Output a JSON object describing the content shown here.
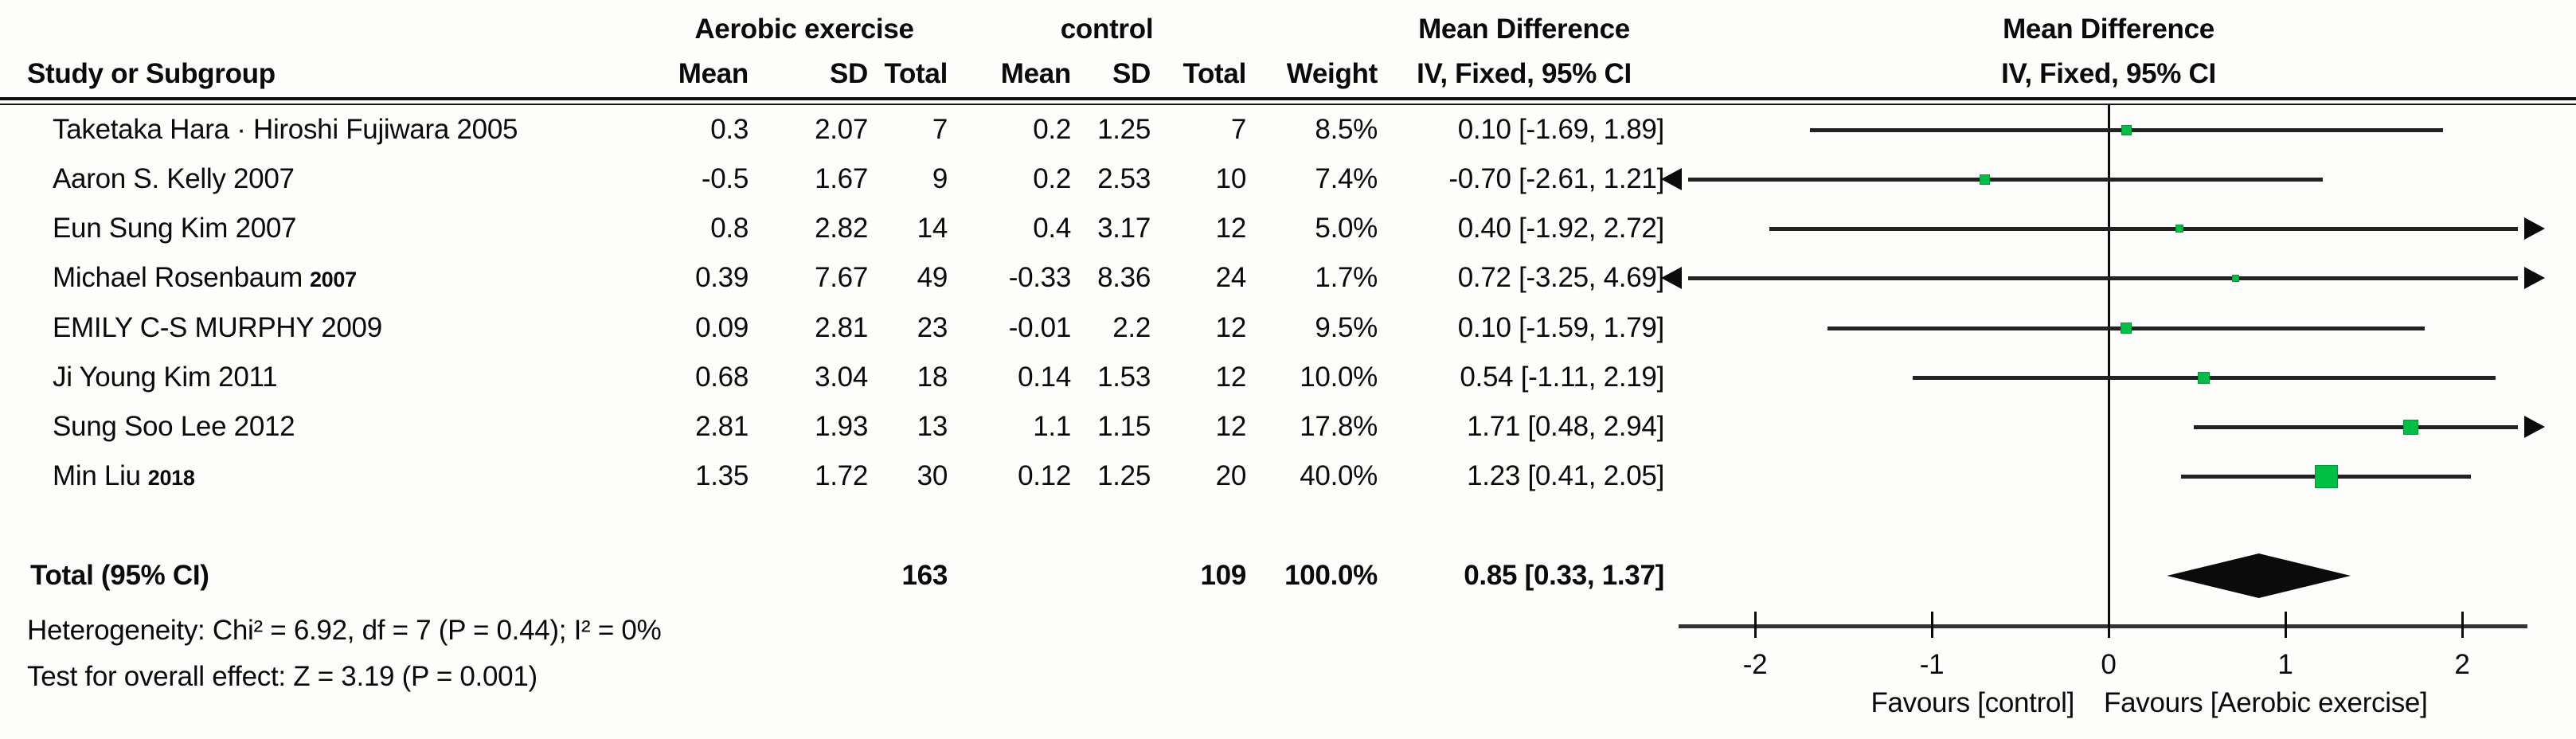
{
  "colors": {
    "marker_green": "#00bf44",
    "marker_green_border": "#009a38",
    "ci_line": "#222222",
    "axis_line": "#333333",
    "diamond_black": "#0b0b0b",
    "text": "#0a0a0a"
  },
  "header": {
    "study_col": "Study or Subgroup",
    "group1": "Aerobic exercise",
    "group2": "control",
    "mean1": "Mean",
    "sd1": "SD",
    "total1": "Total",
    "mean2": "Mean",
    "sd2": "SD",
    "total2": "Total",
    "weight": "Weight",
    "md_title": "Mean Difference",
    "md_sub": "IV, Fixed, 95% CI",
    "plot_md_title": "Mean Difference",
    "plot_md_sub": "IV, Fixed, 95% CI"
  },
  "rows": [
    {
      "study": "Taketaka Hara · Hiroshi Fujiwara 2005",
      "year_small": "",
      "mean1": "0.3",
      "sd1": "2.07",
      "total1": "7",
      "mean2": "0.2",
      "sd2": "1.25",
      "total2": "7",
      "weight": "8.5%",
      "ci": "0.10 [-1.69, 1.89]"
    },
    {
      "study": "Aaron S. Kelly 2007",
      "year_small": "",
      "mean1": "-0.5",
      "sd1": "1.67",
      "total1": "9",
      "mean2": "0.2",
      "sd2": "2.53",
      "total2": "10",
      "weight": "7.4%",
      "ci": "-0.70 [-2.61, 1.21]"
    },
    {
      "study": "Eun Sung Kim 2007",
      "year_small": "",
      "mean1": "0.8",
      "sd1": "2.82",
      "total1": "14",
      "mean2": "0.4",
      "sd2": "3.17",
      "total2": "12",
      "weight": "5.0%",
      "ci": "0.40 [-1.92, 2.72]"
    },
    {
      "study": "Michael Rosenbaum",
      "year_small": "2007",
      "mean1": "0.39",
      "sd1": "7.67",
      "total1": "49",
      "mean2": "-0.33",
      "sd2": "8.36",
      "total2": "24",
      "weight": "1.7%",
      "ci": "0.72 [-3.25, 4.69]"
    },
    {
      "study": "EMILY C-S MURPHY 2009",
      "year_small": "",
      "mean1": "0.09",
      "sd1": "2.81",
      "total1": "23",
      "mean2": "-0.01",
      "sd2": "2.2",
      "total2": "12",
      "weight": "9.5%",
      "ci": "0.10 [-1.59, 1.79]"
    },
    {
      "study": "Ji Young Kim 2011",
      "year_small": "",
      "mean1": "0.68",
      "sd1": "3.04",
      "total1": "18",
      "mean2": "0.14",
      "sd2": "1.53",
      "total2": "12",
      "weight": "10.0%",
      "ci": "0.54 [-1.11, 2.19]"
    },
    {
      "study": "Sung Soo Lee 2012",
      "year_small": "",
      "mean1": "2.81",
      "sd1": "1.93",
      "total1": "13",
      "mean2": "1.1",
      "sd2": "1.15",
      "total2": "12",
      "weight": "17.8%",
      "ci": "1.71 [0.48, 2.94]"
    },
    {
      "study": "Min Liu",
      "year_small": "2018",
      "mean1": "1.35",
      "sd1": "1.72",
      "total1": "30",
      "mean2": "0.12",
      "sd2": "1.25",
      "total2": "20",
      "weight": "40.0%",
      "ci": "1.23 [0.41, 2.05]"
    }
  ],
  "total_row": {
    "label": "Total (95% CI)",
    "total1": "163",
    "total2": "109",
    "weight": "100.0%",
    "ci": "0.85 [0.33, 1.37]"
  },
  "footnotes": {
    "heterogeneity": "Heterogeneity: Chi² = 6.92, df = 7 (P = 0.44); I² = 0%",
    "overall_effect": "Test for overall effect: Z = 3.19 (P = 0.001)"
  },
  "chart_data": {
    "type": "forest",
    "title": "Mean Difference",
    "subtitle": "IV, Fixed, 95% CI",
    "effect_measure": "Mean Difference, IV, Fixed, 95% CI",
    "x_ticks": [
      -2,
      -1,
      0,
      1,
      2
    ],
    "xlim_display": [
      -2.42,
      2.36
    ],
    "xlabel_left": "Favours [control]",
    "xlabel_right": "Favours [Aerobic exercise]",
    "grid": false,
    "studies": [
      {
        "study": "Taketaka Hara · Hiroshi Fujiwara 2005",
        "est": 0.1,
        "lo": -1.69,
        "hi": 1.89,
        "weight_pct": 8.5
      },
      {
        "study": "Aaron S. Kelly 2007",
        "est": -0.7,
        "lo": -2.61,
        "hi": 1.21,
        "weight_pct": 7.4
      },
      {
        "study": "Eun Sung Kim 2007",
        "est": 0.4,
        "lo": -1.92,
        "hi": 2.72,
        "weight_pct": 5.0
      },
      {
        "study": "Michael Rosenbaum 2007",
        "est": 0.72,
        "lo": -3.25,
        "hi": 4.69,
        "weight_pct": 1.7
      },
      {
        "study": "EMILY C-S MURPHY 2009",
        "est": 0.1,
        "lo": -1.59,
        "hi": 1.79,
        "weight_pct": 9.5
      },
      {
        "study": "Ji Young Kim 2011",
        "est": 0.54,
        "lo": -1.11,
        "hi": 2.19,
        "weight_pct": 10.0
      },
      {
        "study": "Sung Soo Lee 2012",
        "est": 1.71,
        "lo": 0.48,
        "hi": 2.94,
        "weight_pct": 17.8
      },
      {
        "study": "Min Liu 2018",
        "est": 1.23,
        "lo": 0.41,
        "hi": 2.05,
        "weight_pct": 40.0
      }
    ],
    "total": {
      "label": "Total (95% CI)",
      "est": 0.85,
      "lo": 0.33,
      "hi": 1.37
    }
  }
}
